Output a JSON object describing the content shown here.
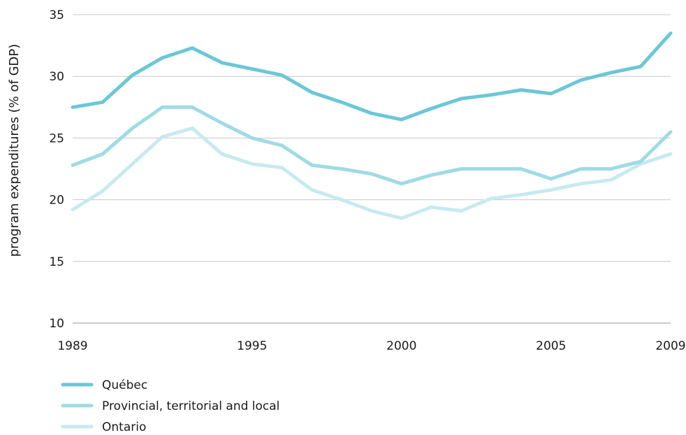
{
  "chart_data": {
    "type": "line",
    "ylabel": "program expenditures (% of GDP)",
    "xlim": [
      1989,
      2009
    ],
    "ylim": [
      10,
      35
    ],
    "x_ticks": [
      "1989",
      "1995",
      "2000",
      "2005",
      "2009"
    ],
    "y_ticks": [
      "10",
      "15",
      "20",
      "25",
      "30",
      "35"
    ],
    "grid": true,
    "legend_position": "bottom-left",
    "x": [
      1989,
      1990,
      1991,
      1992,
      1993,
      1994,
      1995,
      1996,
      1997,
      1998,
      1999,
      2000,
      2001,
      2002,
      2003,
      2004,
      2005,
      2006,
      2007,
      2008,
      2009
    ],
    "series": [
      {
        "name": "Québec",
        "color": "#6cc7d6",
        "values": [
          27.5,
          27.9,
          30.1,
          31.5,
          32.3,
          31.1,
          30.6,
          30.1,
          28.7,
          27.9,
          27.0,
          26.5,
          27.4,
          28.2,
          28.5,
          28.9,
          28.6,
          29.7,
          30.3,
          30.8,
          33.5
        ]
      },
      {
        "name": "Provincial, territorial and local",
        "color": "#9fdbe4",
        "values": [
          22.8,
          23.7,
          25.8,
          27.5,
          27.5,
          26.2,
          25.0,
          24.4,
          22.8,
          22.5,
          22.1,
          21.3,
          22.0,
          22.5,
          22.5,
          22.5,
          21.7,
          22.5,
          22.5,
          23.1,
          25.5
        ]
      },
      {
        "name": "Ontario",
        "color": "#c7eaf0",
        "values": [
          19.2,
          20.7,
          22.9,
          25.1,
          25.8,
          23.7,
          22.9,
          22.6,
          20.8,
          20.0,
          19.1,
          18.5,
          19.4,
          19.1,
          20.1,
          20.4,
          20.8,
          21.3,
          21.6,
          22.9,
          23.7
        ]
      }
    ]
  }
}
